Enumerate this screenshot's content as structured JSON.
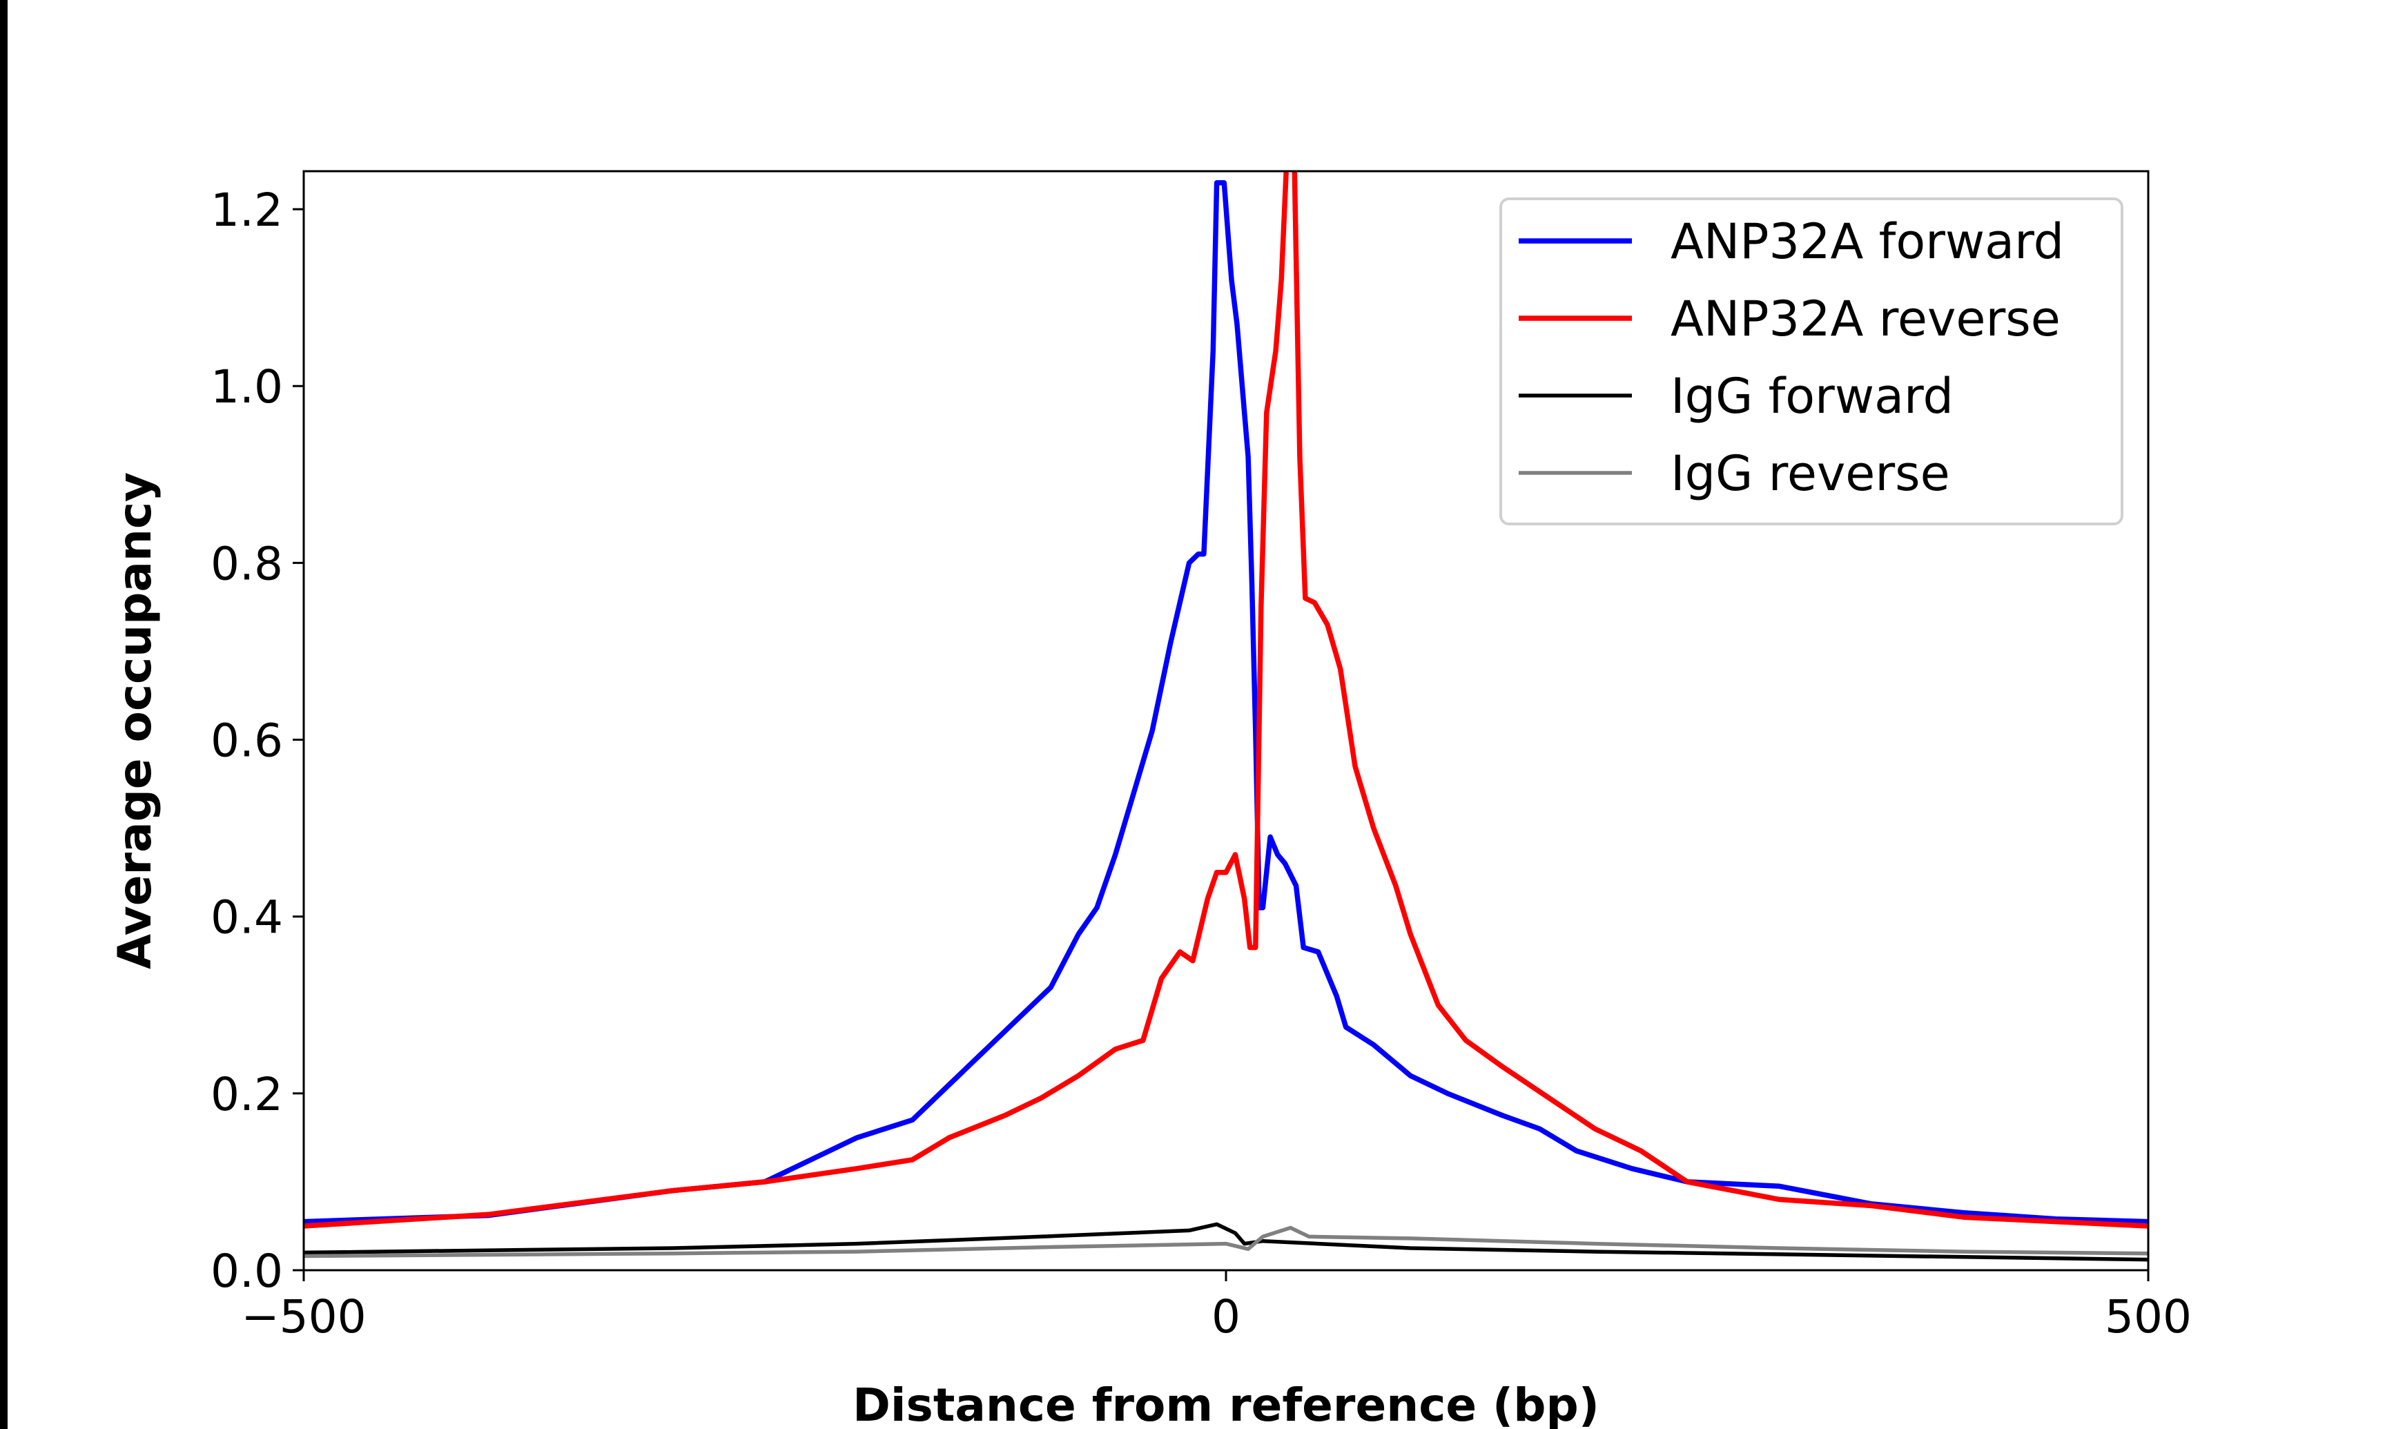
{
  "chart_data": {
    "type": "line",
    "title": "",
    "xlabel": "Distance from reference (bp)",
    "ylabel": "Average occupancy",
    "xlim": [
      -500,
      500
    ],
    "ylim": [
      0,
      1.243
    ],
    "xticks": [
      -500,
      0,
      500
    ],
    "xtick_labels": [
      "−500",
      "0",
      "500"
    ],
    "yticks": [
      0,
      0.2,
      0.4,
      0.6,
      0.8,
      1.0,
      1.2
    ],
    "ytick_labels": [
      "0.0",
      "0.2",
      "0.4",
      "0.6",
      "0.8",
      "1.0",
      "1.2"
    ],
    "grid": false,
    "legend_position": "top-right",
    "series": [
      {
        "name": "ANP32A forward",
        "color": "#0000ff",
        "x": [
          -500,
          -400,
          -300,
          -250,
          -200,
          -170,
          -150,
          -130,
          -110,
          -95,
          -80,
          -70,
          -60,
          -50,
          -40,
          -30,
          -20,
          -15,
          -12,
          -7,
          -5,
          -1,
          3,
          6,
          10,
          12,
          14,
          16,
          18,
          20,
          24,
          28,
          32,
          38,
          42,
          50,
          60,
          65,
          80,
          100,
          120,
          150,
          170,
          190,
          220,
          250,
          300,
          350,
          400,
          450,
          500
        ],
        "y": [
          0.055,
          0.062,
          0.09,
          0.1,
          0.15,
          0.17,
          0.21,
          0.25,
          0.29,
          0.32,
          0.38,
          0.41,
          0.47,
          0.54,
          0.61,
          0.71,
          0.8,
          0.81,
          0.81,
          1.04,
          1.23,
          1.23,
          1.12,
          1.07,
          0.97,
          0.92,
          0.78,
          0.61,
          0.41,
          0.41,
          0.49,
          0.47,
          0.46,
          0.435,
          0.365,
          0.36,
          0.31,
          0.275,
          0.255,
          0.22,
          0.2,
          0.175,
          0.16,
          0.135,
          0.115,
          0.1,
          0.095,
          0.075,
          0.065,
          0.058,
          0.055
        ]
      },
      {
        "name": "ANP32A reverse",
        "color": "#ff0000",
        "x": [
          -500,
          -400,
          -300,
          -250,
          -200,
          -170,
          -150,
          -120,
          -100,
          -80,
          -60,
          -45,
          -35,
          -25,
          -18,
          -10,
          -5,
          0,
          5,
          10,
          13,
          16,
          19,
          22,
          27,
          30,
          33,
          37,
          40,
          43,
          48,
          55,
          62,
          70,
          80,
          92,
          100,
          115,
          130,
          150,
          175,
          200,
          225,
          250,
          275,
          300,
          350,
          400,
          450,
          500
        ],
        "y": [
          0.05,
          0.063,
          0.09,
          0.1,
          0.115,
          0.125,
          0.15,
          0.175,
          0.195,
          0.22,
          0.25,
          0.26,
          0.33,
          0.36,
          0.35,
          0.42,
          0.45,
          0.45,
          0.47,
          0.42,
          0.365,
          0.365,
          0.75,
          0.97,
          1.04,
          1.12,
          1.26,
          1.26,
          0.92,
          0.76,
          0.755,
          0.73,
          0.68,
          0.57,
          0.5,
          0.435,
          0.38,
          0.3,
          0.26,
          0.23,
          0.195,
          0.16,
          0.135,
          0.1,
          0.09,
          0.08,
          0.073,
          0.06,
          0.055,
          0.05
        ]
      },
      {
        "name": "IgG forward",
        "color": "#000000",
        "x": [
          -500,
          -300,
          -200,
          -100,
          -20,
          -5,
          5,
          10,
          20,
          50,
          100,
          200,
          300,
          400,
          500
        ],
        "y": [
          0.02,
          0.025,
          0.03,
          0.038,
          0.045,
          0.052,
          0.042,
          0.03,
          0.033,
          0.03,
          0.025,
          0.021,
          0.018,
          0.015,
          0.012
        ]
      },
      {
        "name": "IgG reverse",
        "color": "#808080",
        "x": [
          -500,
          -300,
          -200,
          -100,
          0,
          12,
          20,
          35,
          45,
          100,
          200,
          300,
          400,
          500
        ],
        "y": [
          0.016,
          0.019,
          0.021,
          0.026,
          0.03,
          0.024,
          0.038,
          0.048,
          0.038,
          0.036,
          0.03,
          0.025,
          0.021,
          0.019
        ]
      }
    ]
  }
}
